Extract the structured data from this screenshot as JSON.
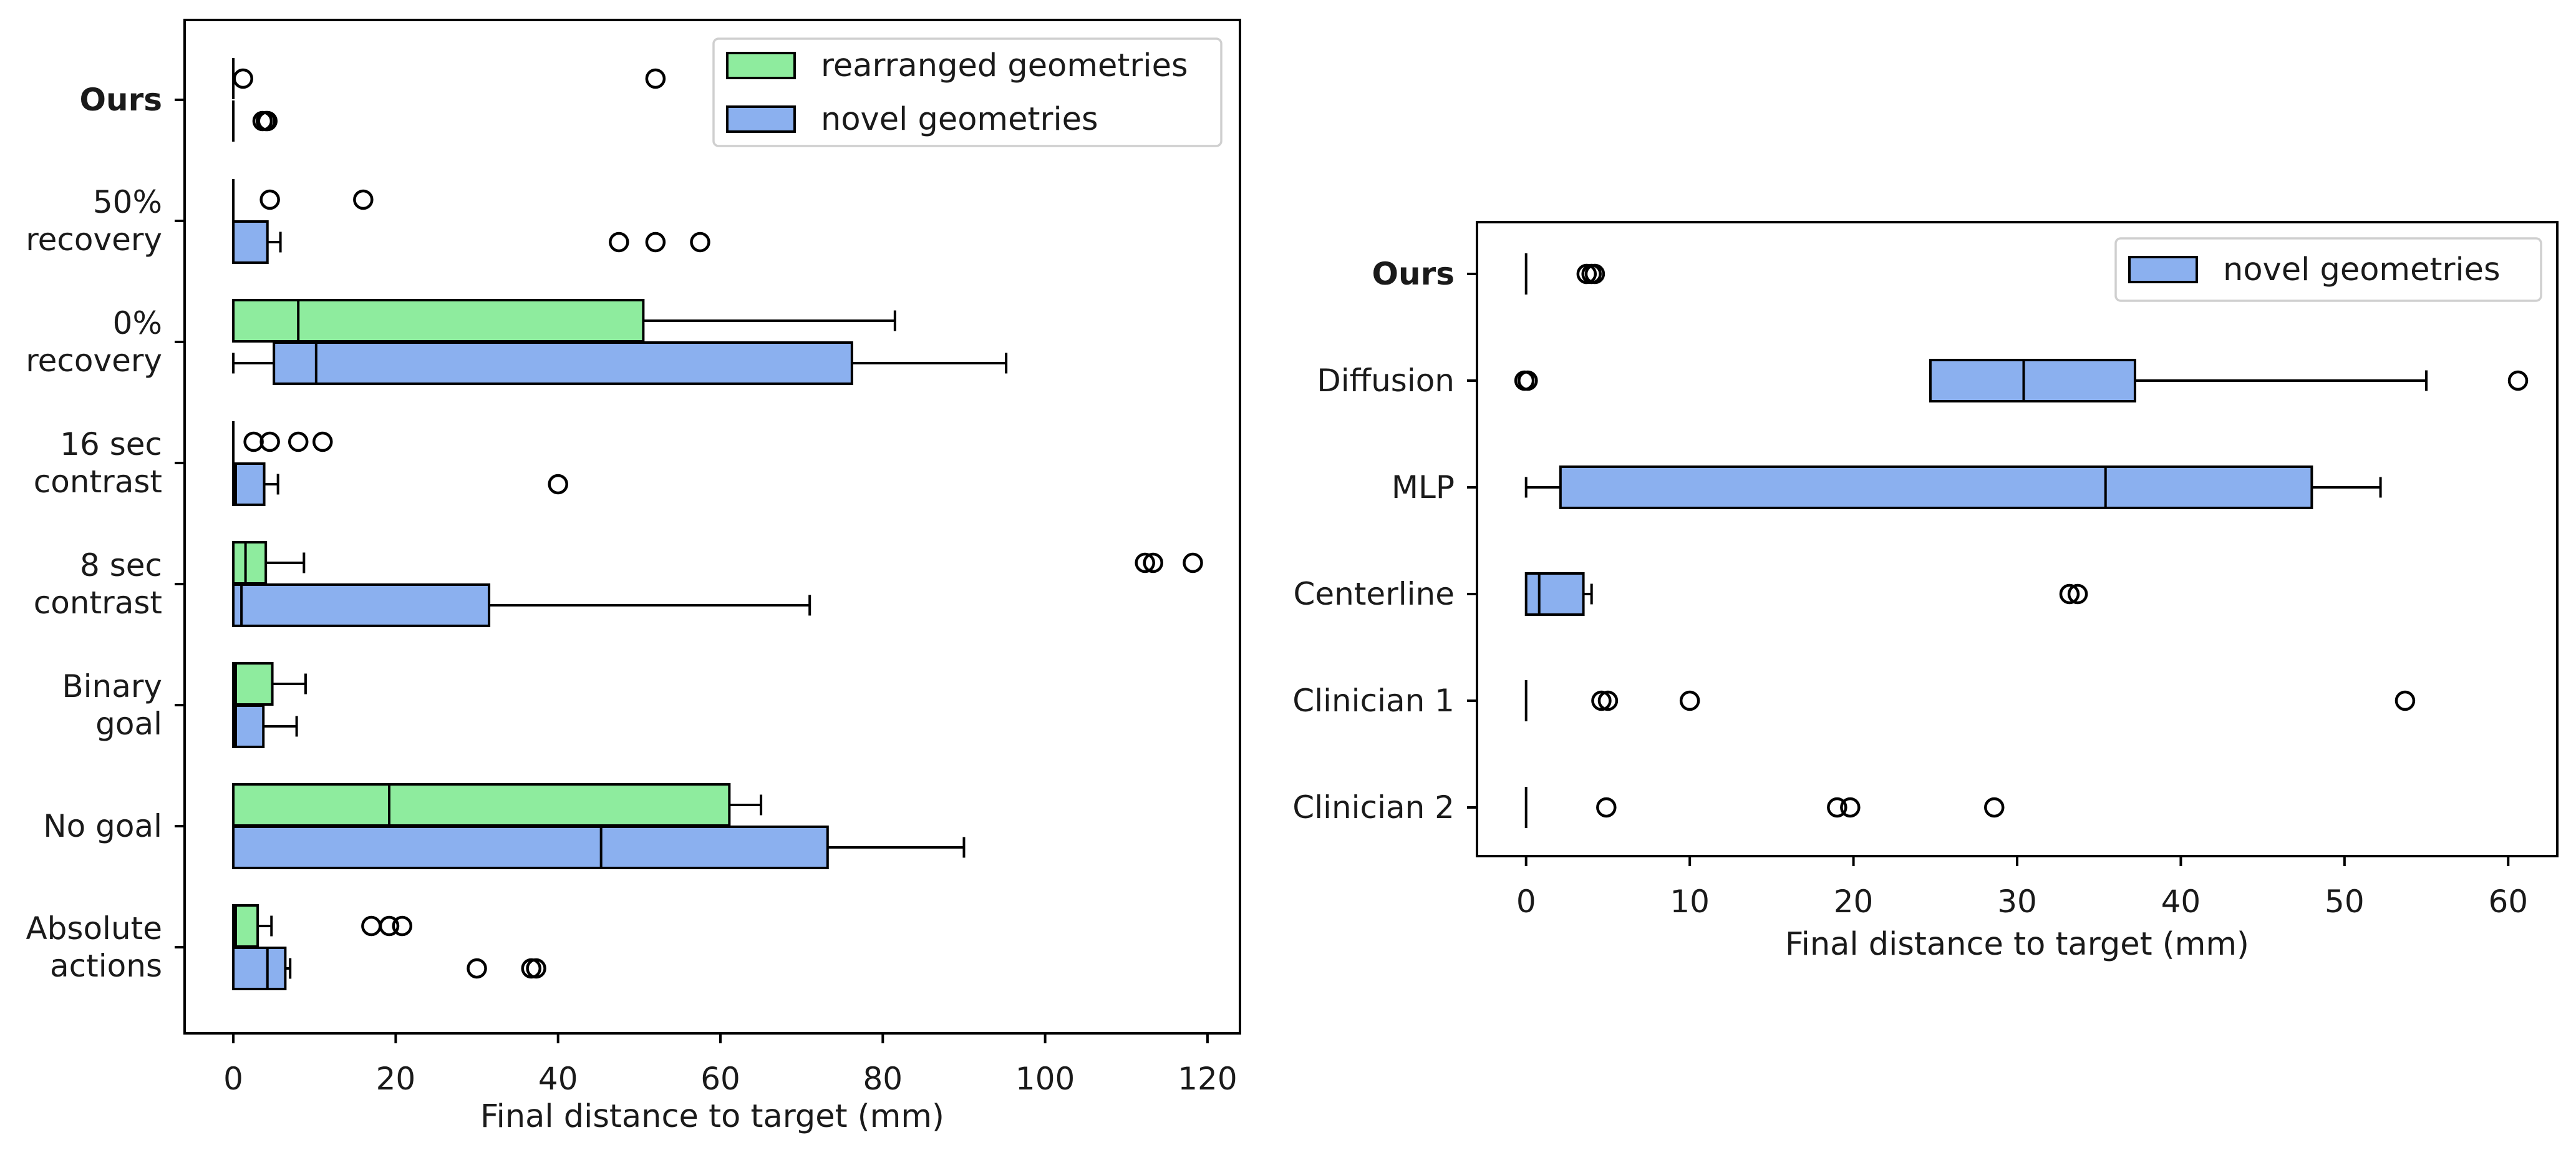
{
  "colors": {
    "rearranged": "#8eec9e",
    "novel": "#8bb0ef"
  },
  "chart_data": [
    {
      "type": "boxplot-horizontal",
      "xlabel": "Final distance to target (mm)",
      "xlim": [
        -6,
        124
      ],
      "xticks": [
        0,
        20,
        40,
        60,
        80,
        100,
        120
      ],
      "legend": {
        "placement": "top-right",
        "entries": [
          {
            "label": "rearranged geometries",
            "series": "rearranged"
          },
          {
            "label": "novel geometries",
            "series": "novel"
          }
        ]
      },
      "series": [
        "rearranged",
        "novel"
      ],
      "categories": [
        {
          "label": [
            "Ours"
          ],
          "bold": true,
          "rearranged": {
            "whislo": 0,
            "q1": 0,
            "med": 0,
            "q3": 0,
            "whishi": 0,
            "fliers": [
              1.2,
              52
            ]
          },
          "novel": {
            "whislo": 0,
            "q1": 0,
            "med": 0,
            "q3": 0,
            "whishi": 0,
            "fliers": [
              3.6,
              4.0,
              4.2
            ]
          }
        },
        {
          "label": [
            "50%",
            "recovery"
          ],
          "bold": false,
          "rearranged": {
            "whislo": 0,
            "q1": 0,
            "med": 0,
            "q3": 0,
            "whishi": 0,
            "fliers": [
              4.5,
              16
            ]
          },
          "novel": {
            "whislo": 0,
            "q1": 0,
            "med": 0,
            "q3": 4.2,
            "whishi": 5.8,
            "fliers": [
              47.5,
              52,
              57.5
            ]
          }
        },
        {
          "label": [
            "0%",
            "recovery"
          ],
          "bold": false,
          "rearranged": {
            "whislo": 0,
            "q1": 0,
            "med": 8,
            "q3": 50.5,
            "whishi": 81.5,
            "fliers": []
          },
          "novel": {
            "whislo": 0,
            "q1": 5,
            "med": 10.2,
            "q3": 76.2,
            "whishi": 95.2,
            "fliers": []
          }
        },
        {
          "label": [
            "16 sec",
            "contrast"
          ],
          "bold": false,
          "rearranged": {
            "whislo": 0,
            "q1": 0,
            "med": 0,
            "q3": 0,
            "whishi": 0,
            "fliers": [
              2.5,
              4.5,
              8,
              11
            ]
          },
          "novel": {
            "whislo": 0,
            "q1": 0,
            "med": 0.3,
            "q3": 3.8,
            "whishi": 5.5,
            "fliers": [
              40
            ]
          }
        },
        {
          "label": [
            "8 sec",
            "contrast"
          ],
          "bold": false,
          "rearranged": {
            "whislo": 0,
            "q1": 0,
            "med": 1.5,
            "q3": 4,
            "whishi": 8.7,
            "fliers": [
              112.3,
              113.3,
              118.2
            ]
          },
          "novel": {
            "whislo": 0,
            "q1": 0,
            "med": 1,
            "q3": 31.5,
            "whishi": 71,
            "fliers": []
          }
        },
        {
          "label": [
            "Binary",
            "goal"
          ],
          "bold": false,
          "rearranged": {
            "whislo": 0,
            "q1": 0,
            "med": 0.3,
            "q3": 4.8,
            "whishi": 8.9,
            "fliers": []
          },
          "novel": {
            "whislo": 0,
            "q1": 0,
            "med": 0.3,
            "q3": 3.7,
            "whishi": 7.8,
            "fliers": []
          }
        },
        {
          "label": [
            "No goal"
          ],
          "bold": false,
          "rearranged": {
            "whislo": 0,
            "q1": 0,
            "med": 19.2,
            "q3": 61.1,
            "whishi": 65,
            "fliers": []
          },
          "novel": {
            "whislo": 0,
            "q1": 0,
            "med": 45.3,
            "q3": 73.2,
            "whishi": 90,
            "fliers": []
          }
        },
        {
          "label": [
            "Absolute",
            "actions"
          ],
          "bold": false,
          "rearranged": {
            "whislo": 0,
            "q1": 0,
            "med": 0.3,
            "q3": 3,
            "whishi": 4.7,
            "fliers": [
              17,
              19.2,
              20.8
            ]
          },
          "novel": {
            "whislo": 0,
            "q1": 0,
            "med": 4.2,
            "q3": 6.4,
            "whishi": 7,
            "fliers": [
              30,
              36.7,
              37.3
            ]
          }
        }
      ]
    },
    {
      "type": "boxplot-horizontal",
      "xlabel": "Final distance to target (mm)",
      "xlim": [
        -3,
        63
      ],
      "xticks": [
        0,
        10,
        20,
        30,
        40,
        50,
        60
      ],
      "legend": {
        "placement": "top-right",
        "entries": [
          {
            "label": "novel geometries",
            "series": "novel"
          }
        ]
      },
      "series": [
        "novel"
      ],
      "categories": [
        {
          "label": "Ours",
          "bold": true,
          "novel": {
            "whislo": 0,
            "q1": 0,
            "med": 0,
            "q3": 0,
            "whishi": 0,
            "fliers": [
              3.7,
              4.0,
              4.2
            ]
          }
        },
        {
          "label": "Diffusion",
          "bold": false,
          "novel": {
            "whislo": 24.7,
            "q1": 24.7,
            "med": 30.4,
            "q3": 37.2,
            "whishi": 55,
            "fliers": [
              -0.1,
              0.1,
              60.6
            ]
          }
        },
        {
          "label": "MLP",
          "bold": false,
          "novel": {
            "whislo": 0,
            "q1": 2.1,
            "med": 35.4,
            "q3": 48,
            "whishi": 52.2,
            "fliers": []
          }
        },
        {
          "label": "Centerline",
          "bold": false,
          "novel": {
            "whislo": 0,
            "q1": 0,
            "med": 0.8,
            "q3": 3.5,
            "whishi": 4,
            "fliers": [
              33.2,
              33.7
            ]
          }
        },
        {
          "label": "Clinician 1",
          "bold": false,
          "novel": {
            "whislo": 0,
            "q1": 0,
            "med": 0,
            "q3": 0,
            "whishi": 0,
            "fliers": [
              4.6,
              5,
              10,
              53.7
            ]
          }
        },
        {
          "label": "Clinician 2",
          "bold": false,
          "novel": {
            "whislo": 0,
            "q1": 0,
            "med": 0,
            "q3": 0,
            "whishi": 0,
            "fliers": [
              4.9,
              19,
              19.8,
              28.6
            ]
          }
        }
      ]
    }
  ]
}
